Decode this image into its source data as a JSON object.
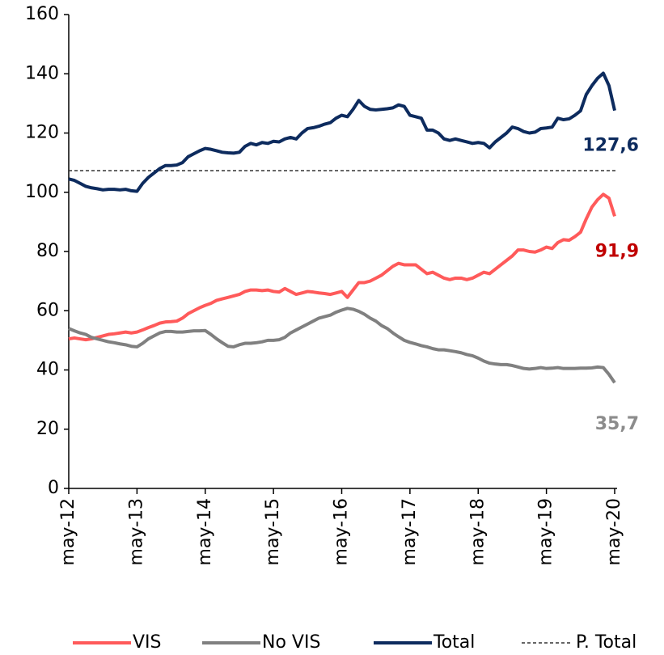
{
  "chart_data": {
    "type": "line",
    "categories": [
      "may-12",
      null,
      null,
      null,
      null,
      null,
      null,
      null,
      null,
      null,
      null,
      null,
      "may-13",
      null,
      null,
      null,
      null,
      null,
      null,
      null,
      null,
      null,
      null,
      null,
      "may-14",
      null,
      null,
      null,
      null,
      null,
      null,
      null,
      null,
      null,
      null,
      null,
      "may-15",
      null,
      null,
      null,
      null,
      null,
      null,
      null,
      null,
      null,
      null,
      null,
      "may-16",
      null,
      null,
      null,
      null,
      null,
      null,
      null,
      null,
      null,
      null,
      null,
      "may-17",
      null,
      null,
      null,
      null,
      null,
      null,
      null,
      null,
      null,
      null,
      null,
      "may-18",
      null,
      null,
      null,
      null,
      null,
      null,
      null,
      null,
      null,
      null,
      null,
      "may-19",
      null,
      null,
      null,
      null,
      null,
      null,
      null,
      null,
      null,
      null,
      null,
      "may-20"
    ],
    "series": [
      {
        "name": "VIS",
        "color": "#ff5a5a",
        "label_color": "#c00000",
        "values": [
          50.5,
          50.8,
          50.5,
          50.2,
          50.5,
          51,
          51.5,
          52,
          52.2,
          52.5,
          52.8,
          52.5,
          52.8,
          53.5,
          54.3,
          55,
          55.8,
          56.2,
          56.3,
          56.5,
          57.5,
          59,
          60,
          61,
          61.8,
          62.5,
          63.5,
          64,
          64.5,
          65,
          65.5,
          66.5,
          67,
          67,
          66.8,
          67,
          66.5,
          66.3,
          67.5,
          66.5,
          65.5,
          66,
          66.5,
          66.3,
          66,
          65.8,
          65.5,
          66,
          66.5,
          64.5,
          67,
          69.5,
          69.5,
          70,
          71,
          72,
          73.5,
          75,
          76,
          75.5,
          75.5,
          75.5,
          74,
          72.5,
          73,
          72,
          71,
          70.5,
          71,
          71,
          70.5,
          71,
          72,
          73,
          72.5,
          74,
          75.5,
          77,
          78.5,
          80.5,
          80.5,
          80,
          79.8,
          80.5,
          81.5,
          81,
          83,
          84,
          83.8,
          85,
          86.5,
          91,
          95,
          97.5,
          99.3,
          98,
          91.9
        ],
        "value_labels": [
          null,
          null,
          null,
          null,
          null,
          null,
          null,
          null,
          null,
          null,
          null,
          null,
          null,
          null,
          null,
          null,
          null,
          null,
          null,
          null,
          null,
          null,
          null,
          null,
          null,
          null,
          null,
          null,
          null,
          null,
          null,
          null,
          null,
          null,
          null,
          null,
          null,
          null,
          null,
          null,
          null,
          null,
          null,
          null,
          null,
          null,
          null,
          null,
          null,
          null,
          null,
          null,
          null,
          null,
          null,
          null,
          null,
          null,
          null,
          null,
          null,
          null,
          null,
          null,
          null,
          null,
          null,
          null,
          null,
          null,
          null,
          null,
          null,
          null,
          null,
          null,
          null,
          null,
          null,
          null,
          null,
          null,
          null,
          null,
          null,
          null,
          null,
          null,
          null,
          null,
          null,
          null,
          null,
          null,
          null,
          null,
          "91,9"
        ]
      },
      {
        "name": "No VIS",
        "color": "#808080",
        "label_color": "#8c8c8c",
        "values": [
          54,
          53.2,
          52.5,
          52,
          51,
          50.5,
          50,
          49.5,
          49.2,
          48.8,
          48.5,
          48,
          47.8,
          49,
          50.5,
          51.5,
          52.5,
          53,
          53,
          52.8,
          52.8,
          53,
          53.2,
          53.2,
          53.3,
          52,
          50.5,
          49.2,
          48,
          47.8,
          48.5,
          49,
          49,
          49.2,
          49.5,
          50,
          50,
          50.2,
          51,
          52.5,
          53.5,
          54.5,
          55.5,
          56.5,
          57.5,
          58,
          58.5,
          59.5,
          60.2,
          60.8,
          60.5,
          59.8,
          58.8,
          57.5,
          56.5,
          55,
          54,
          52.5,
          51.2,
          50,
          49.3,
          48.8,
          48.2,
          47.8,
          47.2,
          46.8,
          46.8,
          46.5,
          46.2,
          45.8,
          45.2,
          44.8,
          44,
          43,
          42.3,
          42,
          41.8,
          41.8,
          41.5,
          41,
          40.5,
          40.3,
          40.5,
          40.8,
          40.5,
          40.6,
          40.8,
          40.5,
          40.5,
          40.5,
          40.6,
          40.6,
          40.7,
          41,
          40.8,
          38.5,
          35.7
        ],
        "value_labels": [
          null,
          null,
          null,
          null,
          null,
          null,
          null,
          null,
          null,
          null,
          null,
          null,
          null,
          null,
          null,
          null,
          null,
          null,
          null,
          null,
          null,
          null,
          null,
          null,
          null,
          null,
          null,
          null,
          null,
          null,
          null,
          null,
          null,
          null,
          null,
          null,
          null,
          null,
          null,
          null,
          null,
          null,
          null,
          null,
          null,
          null,
          null,
          null,
          null,
          null,
          null,
          null,
          null,
          null,
          null,
          null,
          null,
          null,
          null,
          null,
          null,
          null,
          null,
          null,
          null,
          null,
          null,
          null,
          null,
          null,
          null,
          null,
          null,
          null,
          null,
          null,
          null,
          null,
          null,
          null,
          null,
          null,
          null,
          null,
          null,
          null,
          null,
          null,
          null,
          null,
          null,
          null,
          null,
          null,
          null,
          null,
          "35,7"
        ]
      },
      {
        "name": "Total",
        "color": "#0d2b5e",
        "label_color": "#0d2b5e",
        "values": [
          104.5,
          104,
          103,
          102,
          101.5,
          101.2,
          100.8,
          101,
          101,
          100.8,
          101,
          100.5,
          100.3,
          103,
          105,
          106.5,
          108,
          109,
          109,
          109.2,
          110,
          112,
          113,
          114,
          114.8,
          114.5,
          114,
          113.5,
          113.3,
          113.2,
          113.5,
          115.5,
          116.5,
          116,
          116.8,
          116.5,
          117.2,
          117,
          118,
          118.5,
          118,
          120,
          121.5,
          121.8,
          122.3,
          123,
          123.5,
          125,
          126,
          125.5,
          128,
          131,
          129,
          128,
          127.8,
          128,
          128.2,
          128.5,
          129.5,
          129,
          126,
          125.5,
          125,
          121,
          121,
          120,
          118,
          117.5,
          118,
          117.5,
          117,
          116.5,
          116.8,
          116.5,
          115,
          117,
          118.5,
          120,
          122,
          121.5,
          120.5,
          120,
          120.3,
          121.5,
          121.7,
          122,
          125,
          124.5,
          124.8,
          126,
          127.5,
          133,
          136,
          138.5,
          140.2,
          136,
          127.6
        ],
        "value_labels": [
          null,
          null,
          null,
          null,
          null,
          null,
          null,
          null,
          null,
          null,
          null,
          null,
          null,
          null,
          null,
          null,
          null,
          null,
          null,
          null,
          null,
          null,
          null,
          null,
          null,
          null,
          null,
          null,
          null,
          null,
          null,
          null,
          null,
          null,
          null,
          null,
          null,
          null,
          null,
          null,
          null,
          null,
          null,
          null,
          null,
          null,
          null,
          null,
          null,
          null,
          null,
          null,
          null,
          null,
          null,
          null,
          null,
          null,
          null,
          null,
          null,
          null,
          null,
          null,
          null,
          null,
          null,
          null,
          null,
          null,
          null,
          null,
          null,
          null,
          null,
          null,
          null,
          null,
          null,
          null,
          null,
          null,
          null,
          null,
          null,
          null,
          null,
          null,
          null,
          null,
          null,
          null,
          null,
          null,
          null,
          null,
          "127,6"
        ]
      }
    ],
    "reference_line": {
      "name": "P. Total",
      "value": 107.3,
      "color": "#333333",
      "dashed": true
    },
    "ylim": [
      0,
      160
    ],
    "yticks": [
      0,
      20,
      40,
      60,
      80,
      100,
      120,
      140,
      160
    ],
    "grid": false,
    "legend": "bottom"
  }
}
